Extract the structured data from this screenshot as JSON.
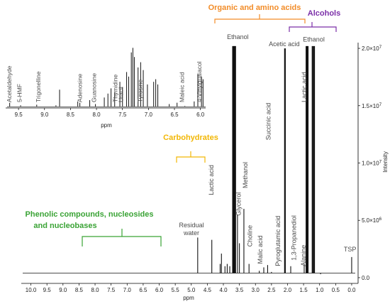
{
  "chart_data": {
    "type": "line",
    "colors": {
      "spectrum": "#111111",
      "organic": "#f28c28",
      "alcohols": "#7b2fa8",
      "carbohydrates": "#f2b705",
      "phenolic": "#3aa335",
      "annotation_text": "#4a4a4a"
    },
    "main": {
      "xlabel": "ppm",
      "ylabel": "Intensity",
      "xlim": [
        10.3,
        -0.2
      ],
      "ylim": [
        -500000.0,
        20500000.0
      ],
      "x_ticks": [
        "10.0",
        "9.5",
        "9.0",
        "8.5",
        "8.0",
        "7.5",
        "7.0",
        "6.5",
        "6.0",
        "5.5",
        "5.0",
        "4.5",
        "4.0",
        "3.5",
        "3.0",
        "2.5",
        "2.0",
        "1.5",
        "1.0",
        "0.5",
        "0.0"
      ],
      "y_ticks": [
        {
          "value": 0,
          "base": "0.0",
          "exp": ""
        },
        {
          "value": 5000000,
          "base": "5.0×10",
          "exp": "6"
        },
        {
          "value": 10000000,
          "base": "1.0×10",
          "exp": "7"
        },
        {
          "value": 15000000,
          "base": "1.5×10",
          "exp": "7"
        },
        {
          "value": 20000000,
          "base": "2.0×10",
          "exp": "7"
        }
      ],
      "peaks": [
        {
          "ppm": 4.8,
          "value": 3500000.0
        },
        {
          "ppm": 4.36,
          "value": 3300000.0
        },
        {
          "ppm": 4.1,
          "value": 1200000.0
        },
        {
          "ppm": 4.06,
          "value": 2100000.0
        },
        {
          "ppm": 3.95,
          "value": 1000000.0
        },
        {
          "ppm": 3.88,
          "value": 1200000.0
        },
        {
          "ppm": 3.8,
          "value": 1000000.0
        },
        {
          "ppm": 3.7,
          "value": 20200000.0
        },
        {
          "ppm": 3.66,
          "value": 20200000.0
        },
        {
          "ppm": 3.63,
          "value": 20200000.0
        },
        {
          "ppm": 3.56,
          "value": 5500000.0
        },
        {
          "ppm": 3.5,
          "value": 3000000.0
        },
        {
          "ppm": 3.36,
          "value": 6000000.0
        },
        {
          "ppm": 3.2,
          "value": 1200000.0
        },
        {
          "ppm": 2.88,
          "value": 600000.0
        },
        {
          "ppm": 2.74,
          "value": 900000.0
        },
        {
          "ppm": 2.62,
          "value": 1100000.0
        },
        {
          "ppm": 2.5,
          "value": 500000.0
        },
        {
          "ppm": 2.34,
          "value": 400000.0
        },
        {
          "ppm": 2.08,
          "value": 20000000.0
        },
        {
          "ppm": 1.9,
          "value": 1000000.0
        },
        {
          "ppm": 1.48,
          "value": 1200000.0
        },
        {
          "ppm": 1.41,
          "value": 20200000.0
        },
        {
          "ppm": 1.37,
          "value": 20200000.0
        },
        {
          "ppm": 1.22,
          "value": 20200000.0
        },
        {
          "ppm": 1.17,
          "value": 20200000.0
        },
        {
          "ppm": 0.97,
          "value": 300000.0
        },
        {
          "ppm": 0.0,
          "value": 1800000.0
        }
      ],
      "peak_labels": [
        {
          "text": "Ethanol",
          "ppm": 3.55,
          "value": 20800000.0,
          "rotate": false
        },
        {
          "text": "Acetic acid",
          "ppm": 2.1,
          "value": 20200000.0,
          "rotate": false
        },
        {
          "text": "Ethanol",
          "ppm": 1.18,
          "value": 20600000.0,
          "rotate": false
        },
        {
          "text": "Lactic acid",
          "ppm": 1.48,
          "value": 15300000.0,
          "rotate": true
        },
        {
          "text": "Succinic acid",
          "ppm": 2.6,
          "value": 12000000.0,
          "rotate": true
        },
        {
          "text": "Methanol",
          "ppm": 3.32,
          "value": 7800000.0,
          "rotate": true
        },
        {
          "text": "Lactic acid",
          "ppm": 4.38,
          "value": 7200000.0,
          "rotate": true
        },
        {
          "text": "Glycerol",
          "ppm": 3.52,
          "value": 5400000.0,
          "rotate": true
        },
        {
          "text": "Choline",
          "ppm": 3.17,
          "value": 2700000.0,
          "rotate": true
        },
        {
          "text": "Malic acid",
          "ppm": 2.85,
          "value": 1200000.0,
          "rotate": true
        },
        {
          "text": "Pyroglutamic acid",
          "ppm": 2.3,
          "value": 1000000.0,
          "rotate": true
        },
        {
          "text": "1,3-Propanediol",
          "ppm": 1.8,
          "value": 1500000.0,
          "rotate": true
        },
        {
          "text": "Alanine",
          "ppm": 1.5,
          "value": 1000000.0,
          "rotate": true
        },
        {
          "text": "TSP",
          "ppm": 0.05,
          "value": 2300000.0,
          "rotate": false
        }
      ],
      "residual_water": [
        "Residual",
        "water"
      ]
    },
    "inset": {
      "xlabel": "ppm",
      "xlim": [
        9.72,
        5.9
      ],
      "x_ticks": [
        "9.5",
        "9.0",
        "8.5",
        "8.0",
        "7.5",
        "7.0",
        "6.5",
        "6.0"
      ],
      "ylim": [
        0,
        100
      ],
      "peaks": [
        {
          "ppm": 9.67,
          "value": 8
        },
        {
          "ppm": 9.46,
          "value": 4
        },
        {
          "ppm": 9.15,
          "value": 5
        },
        {
          "ppm": 8.78,
          "value": 4
        },
        {
          "ppm": 8.71,
          "value": 28
        },
        {
          "ppm": 8.36,
          "value": 10
        },
        {
          "ppm": 8.32,
          "value": 8
        },
        {
          "ppm": 8.13,
          "value": 12
        },
        {
          "ppm": 8.02,
          "value": 6
        },
        {
          "ppm": 7.85,
          "value": 16
        },
        {
          "ppm": 7.78,
          "value": 22
        },
        {
          "ppm": 7.72,
          "value": 30
        },
        {
          "ppm": 7.65,
          "value": 24
        },
        {
          "ppm": 7.55,
          "value": 40
        },
        {
          "ppm": 7.5,
          "value": 32
        },
        {
          "ppm": 7.42,
          "value": 55
        },
        {
          "ppm": 7.38,
          "value": 48
        },
        {
          "ppm": 7.33,
          "value": 85
        },
        {
          "ppm": 7.3,
          "value": 92
        },
        {
          "ppm": 7.27,
          "value": 78
        },
        {
          "ppm": 7.2,
          "value": 62
        },
        {
          "ppm": 7.15,
          "value": 70
        },
        {
          "ppm": 7.1,
          "value": 58
        },
        {
          "ppm": 7.02,
          "value": 36
        },
        {
          "ppm": 6.9,
          "value": 40
        },
        {
          "ppm": 6.86,
          "value": 44
        },
        {
          "ppm": 6.82,
          "value": 36
        },
        {
          "ppm": 6.6,
          "value": 6
        },
        {
          "ppm": 6.45,
          "value": 8
        },
        {
          "ppm": 6.3,
          "value": 3
        },
        {
          "ppm": 6.12,
          "value": 10
        },
        {
          "ppm": 6.05,
          "value": 52
        },
        {
          "ppm": 5.98,
          "value": 48
        },
        {
          "ppm": 5.95,
          "value": 44
        }
      ],
      "labels": [
        {
          "text": "Acetaldehyde",
          "ppm": 9.68
        },
        {
          "text": "5-HMF",
          "ppm": 9.48
        },
        {
          "text": "Trigonelline",
          "ppm": 9.12
        },
        {
          "text": "Adenosine",
          "ppm": 8.32
        },
        {
          "text": "Guanosine",
          "ppm": 8.05
        },
        {
          "text": "Thymidine",
          "ppm": 7.64
        },
        {
          "text": "Uracil",
          "ppm": 7.53
        },
        {
          "text": "Tyrosine",
          "ppm": 7.16
        },
        {
          "text": "Maleic acid",
          "ppm": 6.36
        },
        {
          "text": "4-Vinylguaiacol",
          "ppm": 6.02
        }
      ]
    },
    "groups": {
      "organic": "Organic and amino acids",
      "alcohols": "Alcohols",
      "carbohydrates": "Carbohydrates",
      "phenolic_line1": "Phenolic compounds, nucleosides",
      "phenolic_line2": "and nucleobases"
    }
  }
}
